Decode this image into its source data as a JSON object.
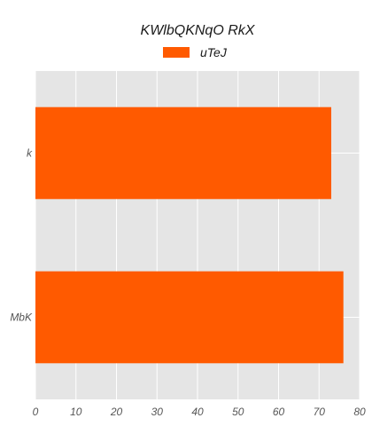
{
  "chart_data": {
    "type": "bar",
    "orientation": "horizontal",
    "title": "KWlbQKNqO RkX",
    "categories": [
      "k",
      "MbK"
    ],
    "series": [
      {
        "name": "uTeJ",
        "values": [
          73,
          76
        ],
        "color": "#ff5a00"
      }
    ],
    "xlim": [
      0,
      80
    ],
    "xticks": [
      0,
      10,
      20,
      30,
      40,
      50,
      60,
      70,
      80
    ],
    "grid": true,
    "grid_color": "#ffffff",
    "plot_background": "#e5e5e5",
    "legend_position": "top-center"
  }
}
